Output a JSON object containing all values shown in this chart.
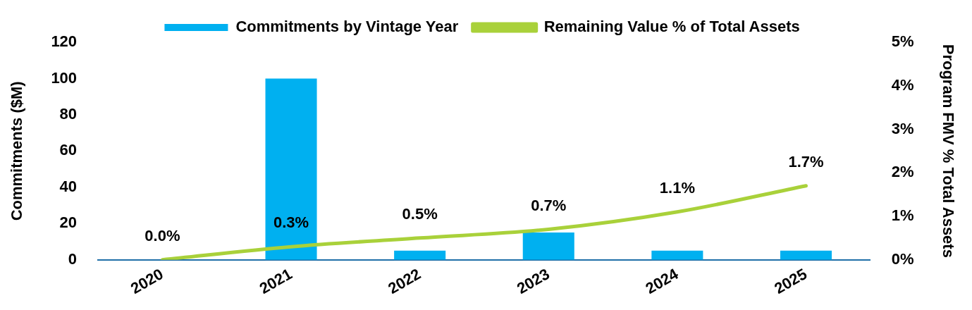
{
  "chart_data": {
    "type": "bar",
    "categories": [
      "2020",
      "2021",
      "2022",
      "2023",
      "2024",
      "2025"
    ],
    "ylabel": "Commitments ($M)",
    "y2label": "Program FMV % Total Assets",
    "series": [
      {
        "name": "Commitments by Vintage Year",
        "color": "#00b0f0",
        "values": [
          0,
          100,
          5,
          15,
          5,
          5
        ]
      },
      {
        "name": "Remaining Value % of Total Assets",
        "type": "line",
        "axis": "y2",
        "color": "#a9d13a",
        "values": [
          0,
          0.3,
          0.5,
          0.7,
          1.1,
          1.7
        ],
        "value_labels": [
          "0.0%",
          "0.3%",
          "0.5%",
          "0.7%",
          "1.1%",
          "1.7%"
        ]
      }
    ],
    "ylim": [
      0,
      120
    ],
    "yticks": [
      0,
      20,
      40,
      60,
      80,
      100,
      120
    ],
    "y2lim": [
      0,
      5
    ],
    "y2ticks": [
      {
        "value": 0,
        "label": "0%"
      },
      {
        "value": 1,
        "label": "1%"
      },
      {
        "value": 2,
        "label": "2%"
      },
      {
        "value": 3,
        "label": "3%"
      },
      {
        "value": 4,
        "label": "4%"
      },
      {
        "value": 5,
        "label": "5%"
      }
    ],
    "grid": false,
    "legend": "top",
    "marker": "none"
  }
}
